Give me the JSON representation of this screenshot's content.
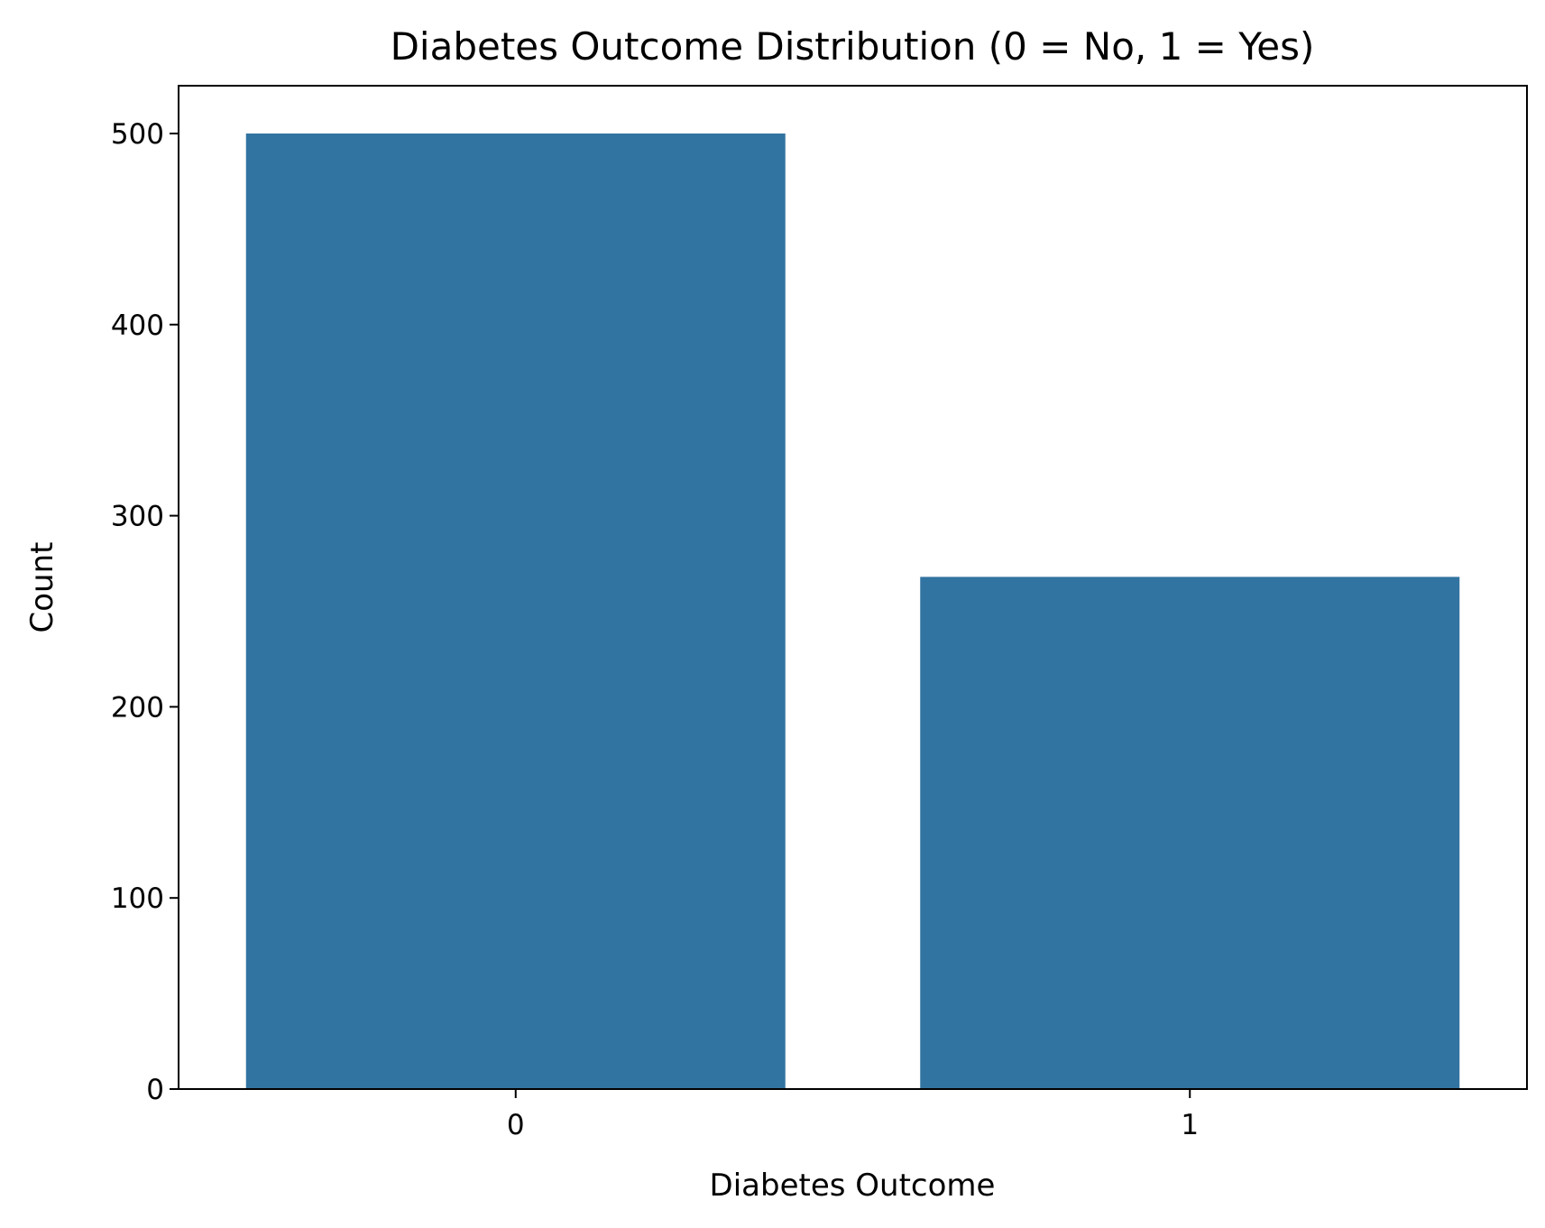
{
  "chart_data": {
    "type": "bar",
    "title": "Diabetes Outcome Distribution (0 = No, 1 = Yes)",
    "xlabel": "Diabetes Outcome",
    "ylabel": "Count",
    "categories": [
      "0",
      "1"
    ],
    "values": [
      500,
      268
    ],
    "ylim": [
      0,
      525
    ],
    "yticks": [
      0,
      100,
      200,
      300,
      400,
      500
    ],
    "bar_color": "#3274a1",
    "grid": false,
    "legend": "none"
  }
}
